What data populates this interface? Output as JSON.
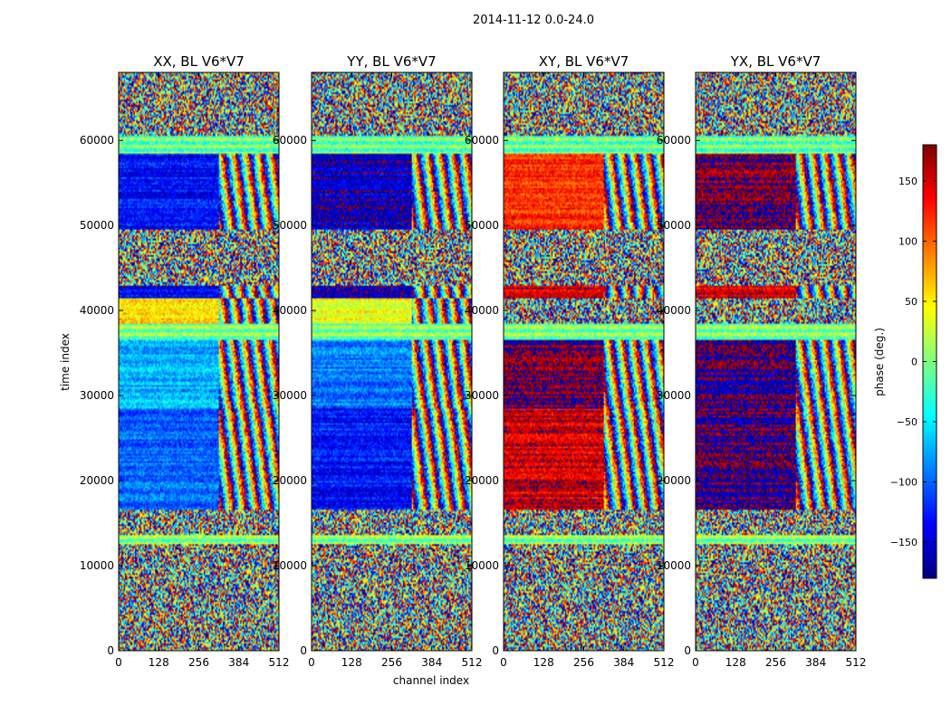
{
  "figure": {
    "suptitle": "2014-11-12 0.0-24.0"
  },
  "chart_data": {
    "type": "heatmap",
    "suptitle": "2014-11-12 0.0-24.0",
    "xlabel": "channel index",
    "ylabel": "time index",
    "xlim": [
      0,
      512
    ],
    "ylim": [
      0,
      68000
    ],
    "xticks": [
      0,
      128,
      256,
      384,
      512
    ],
    "yticks": [
      0,
      10000,
      20000,
      30000,
      40000,
      50000,
      60000
    ],
    "ytick_labels": [
      "0",
      "10000",
      "20000",
      "30000",
      "40000",
      "50000",
      "60000"
    ],
    "colorbar": {
      "label": "phase (deg.)",
      "range": [
        -180,
        180
      ],
      "ticks": [
        -150,
        -100,
        -50,
        0,
        50,
        100,
        150
      ],
      "tick_labels": [
        "−150",
        "−100",
        "−50",
        "0",
        "50",
        "100",
        "150"
      ],
      "colormap": "jet",
      "colormap_stops": [
        "#00007f",
        "#0000ff",
        "#007fff",
        "#00ffff",
        "#7fff7f",
        "#ffff00",
        "#ff7f00",
        "#ff0000",
        "#7f0000"
      ]
    },
    "panels": [
      {
        "title": "XX, BL V6*V7",
        "bands": [
          {
            "t0": 68000,
            "t1": 60500,
            "mode": "noise",
            "base": -110
          },
          {
            "t0": 60500,
            "t1": 58500,
            "mode": "stripes",
            "base": -30
          },
          {
            "t0": 58500,
            "t1": 49500,
            "mode": "coherent",
            "base": -130
          },
          {
            "t0": 49500,
            "t1": 43000,
            "mode": "noise",
            "base": 0
          },
          {
            "t0": 43000,
            "t1": 41500,
            "mode": "coherent",
            "base": -140
          },
          {
            "t0": 41500,
            "t1": 38500,
            "mode": "coherent",
            "base": 60
          },
          {
            "t0": 38500,
            "t1": 36500,
            "mode": "stripes",
            "base": -20
          },
          {
            "t0": 36500,
            "t1": 28500,
            "mode": "coherent",
            "base": -70
          },
          {
            "t0": 28500,
            "t1": 16500,
            "mode": "coherent",
            "base": -100
          },
          {
            "t0": 16500,
            "t1": 13500,
            "mode": "noise",
            "base": 0
          },
          {
            "t0": 13500,
            "t1": 12500,
            "mode": "stripes",
            "base": -20
          },
          {
            "t0": 12500,
            "t1": 0,
            "mode": "noise",
            "base": 0
          }
        ]
      },
      {
        "title": "YY, BL V6*V7",
        "bands": [
          {
            "t0": 68000,
            "t1": 60500,
            "mode": "noise",
            "base": -140
          },
          {
            "t0": 60500,
            "t1": 58500,
            "mode": "stripes",
            "base": -30
          },
          {
            "t0": 58500,
            "t1": 49500,
            "mode": "coherent",
            "base": -155
          },
          {
            "t0": 49500,
            "t1": 43000,
            "mode": "noise",
            "base": 0
          },
          {
            "t0": 43000,
            "t1": 41500,
            "mode": "coherent",
            "base": -160
          },
          {
            "t0": 41500,
            "t1": 38500,
            "mode": "coherent",
            "base": 45
          },
          {
            "t0": 38500,
            "t1": 36500,
            "mode": "stripes",
            "base": -20
          },
          {
            "t0": 36500,
            "t1": 28500,
            "mode": "coherent",
            "base": -90
          },
          {
            "t0": 28500,
            "t1": 16500,
            "mode": "coherent",
            "base": -130
          },
          {
            "t0": 16500,
            "t1": 13500,
            "mode": "noise",
            "base": 0
          },
          {
            "t0": 13500,
            "t1": 12500,
            "mode": "stripes",
            "base": -20
          },
          {
            "t0": 12500,
            "t1": 0,
            "mode": "noise",
            "base": 0
          }
        ]
      },
      {
        "title": "XY, BL V6*V7",
        "bands": [
          {
            "t0": 68000,
            "t1": 60500,
            "mode": "noise",
            "base": 0
          },
          {
            "t0": 60500,
            "t1": 58500,
            "mode": "stripes",
            "base": -30
          },
          {
            "t0": 58500,
            "t1": 49500,
            "mode": "coherent",
            "base": 120
          },
          {
            "t0": 49500,
            "t1": 43000,
            "mode": "noise",
            "base": 0
          },
          {
            "t0": 43000,
            "t1": 41500,
            "mode": "coherent",
            "base": 150
          },
          {
            "t0": 41500,
            "t1": 38500,
            "mode": "noise",
            "base": 0
          },
          {
            "t0": 38500,
            "t1": 36500,
            "mode": "stripes",
            "base": -20
          },
          {
            "t0": 36500,
            "t1": 28500,
            "mode": "coherent",
            "base": 175
          },
          {
            "t0": 28500,
            "t1": 16500,
            "mode": "coherent",
            "base": 150
          },
          {
            "t0": 16500,
            "t1": 13500,
            "mode": "noise",
            "base": 0
          },
          {
            "t0": 13500,
            "t1": 12500,
            "mode": "stripes",
            "base": -20
          },
          {
            "t0": 12500,
            "t1": 0,
            "mode": "noise",
            "base": 0
          }
        ]
      },
      {
        "title": "YX, BL V6*V7",
        "bands": [
          {
            "t0": 68000,
            "t1": 60500,
            "mode": "noise",
            "base": 0
          },
          {
            "t0": 60500,
            "t1": 58500,
            "mode": "stripes",
            "base": -30
          },
          {
            "t0": 58500,
            "t1": 49500,
            "mode": "coherent",
            "base": 175
          },
          {
            "t0": 49500,
            "t1": 43000,
            "mode": "noise",
            "base": 0
          },
          {
            "t0": 43000,
            "t1": 41500,
            "mode": "coherent",
            "base": 150
          },
          {
            "t0": 41500,
            "t1": 38500,
            "mode": "noise",
            "base": 0
          },
          {
            "t0": 38500,
            "t1": 36500,
            "mode": "stripes",
            "base": -20
          },
          {
            "t0": 36500,
            "t1": 28500,
            "mode": "coherent",
            "base": -170
          },
          {
            "t0": 28500,
            "t1": 16500,
            "mode": "coherent",
            "base": -175
          },
          {
            "t0": 16500,
            "t1": 13500,
            "mode": "noise",
            "base": 0
          },
          {
            "t0": 13500,
            "t1": 12500,
            "mode": "stripes",
            "base": -20
          },
          {
            "t0": 12500,
            "t1": 0,
            "mode": "noise",
            "base": 0
          }
        ]
      }
    ]
  }
}
